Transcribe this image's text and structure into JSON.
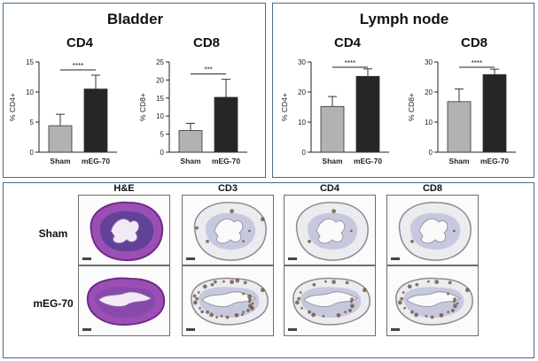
{
  "sections": {
    "bladder": {
      "title": "Bladder"
    },
    "lymph": {
      "title": "Lymph node"
    }
  },
  "chart_data": [
    {
      "type": "bar",
      "group": "Bladder",
      "title": "CD4",
      "ylabel": "% CD4+",
      "categories": [
        "Sham",
        "mEG-70"
      ],
      "values": [
        4.4,
        10.5
      ],
      "errors": [
        1.9,
        2.3
      ],
      "ylim": [
        0,
        15
      ],
      "yticks": [
        0,
        5,
        10,
        15
      ],
      "significance": "****",
      "colors": [
        "#b2b2b2",
        "#262626"
      ]
    },
    {
      "type": "bar",
      "group": "Bladder",
      "title": "CD8",
      "ylabel": "% CD8+",
      "categories": [
        "Sham",
        "mEG-70"
      ],
      "values": [
        6.0,
        15.2
      ],
      "errors": [
        2.0,
        5.0
      ],
      "ylim": [
        0,
        25
      ],
      "yticks": [
        0,
        5,
        10,
        15,
        20,
        25
      ],
      "significance": "***",
      "colors": [
        "#b2b2b2",
        "#262626"
      ]
    },
    {
      "type": "bar",
      "group": "Lymph node",
      "title": "CD4",
      "ylabel": "% CD4+",
      "categories": [
        "Sham",
        "mEG-70"
      ],
      "values": [
        15.2,
        25.2
      ],
      "errors": [
        3.3,
        2.5
      ],
      "ylim": [
        0,
        30
      ],
      "yticks": [
        0,
        10,
        20,
        30
      ],
      "significance": "****",
      "colors": [
        "#b2b2b2",
        "#262626"
      ]
    },
    {
      "type": "bar",
      "group": "Lymph node",
      "title": "CD8",
      "ylabel": "% CD8+",
      "categories": [
        "Sham",
        "mEG-70"
      ],
      "values": [
        16.8,
        25.8
      ],
      "errors": [
        4.2,
        1.8
      ],
      "ylim": [
        0,
        30
      ],
      "yticks": [
        0,
        10,
        20,
        30
      ],
      "significance": "****",
      "colors": [
        "#b2b2b2",
        "#262626"
      ]
    }
  ],
  "histology": {
    "columns": [
      "H&E",
      "CD3",
      "CD4",
      "CD8"
    ],
    "rows": [
      "Sham",
      "mEG-70"
    ],
    "colors": {
      "he_stain": "#9b4fb5",
      "ihc_positive": "#6b4a2f",
      "ihc_counterstain": "#9aa0c8"
    }
  }
}
